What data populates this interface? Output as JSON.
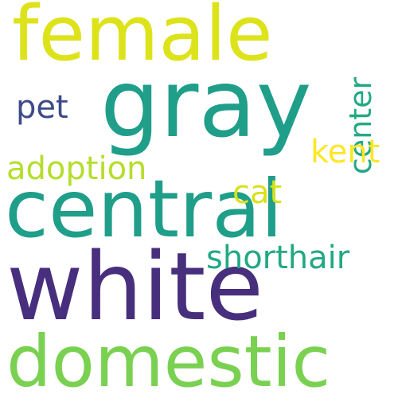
{
  "word_cloud": {
    "background": "#ffffff",
    "words": [
      {
        "text": "female",
        "color": "#dde31a"
      },
      {
        "text": "gray",
        "color": "#1f9e89"
      },
      {
        "text": "central",
        "color": "#1f9e89"
      },
      {
        "text": "white",
        "color": "#472f7d"
      },
      {
        "text": "domestic",
        "color": "#7ad151"
      },
      {
        "text": "pet",
        "color": "#3e4a89"
      },
      {
        "text": "center",
        "color": "#24a884"
      },
      {
        "text": "kent",
        "color": "#fde725"
      },
      {
        "text": "adoption",
        "color": "#b5de2b"
      },
      {
        "text": "cat",
        "color": "#d8e219"
      },
      {
        "text": "shorthair",
        "color": "#22a884"
      }
    ]
  }
}
